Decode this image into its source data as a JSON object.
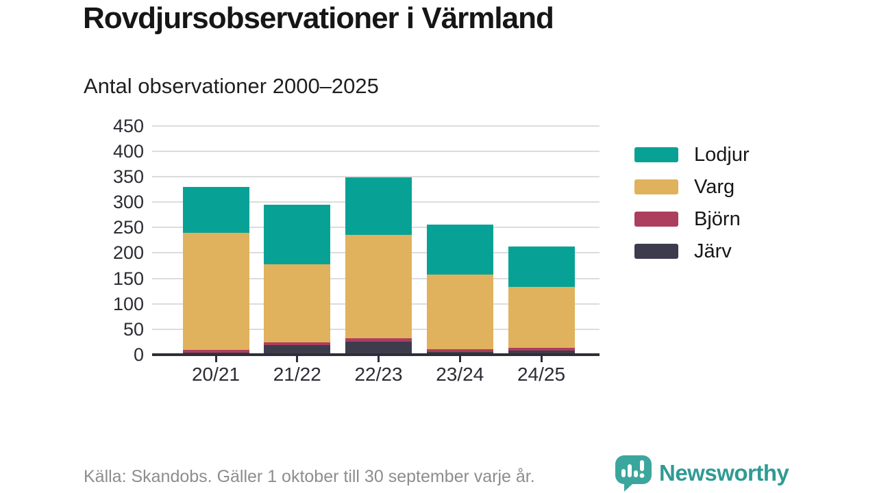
{
  "header": {
    "title": "Rovdjursobservationer i Värmland",
    "subtitle": "Antal observationer 2000–2025"
  },
  "chart_data": {
    "type": "bar",
    "stacked": true,
    "title": "Rovdjursobservationer i Värmland",
    "subtitle": "Antal observationer 2000–2025",
    "categories": [
      "20/21",
      "21/22",
      "22/23",
      "23/24",
      "24/25"
    ],
    "series": [
      {
        "name": "Järv",
        "color": "#3d3c4d",
        "values": [
          4,
          19,
          26,
          5,
          8
        ]
      },
      {
        "name": "Björn",
        "color": "#ac3e5e",
        "values": [
          6,
          5,
          6,
          6,
          6
        ]
      },
      {
        "name": "Varg",
        "color": "#e0b25d",
        "values": [
          229,
          154,
          204,
          146,
          119
        ]
      },
      {
        "name": "Lodjur",
        "color": "#07a295",
        "values": [
          91,
          117,
          112,
          99,
          80
        ]
      }
    ],
    "totals": [
      330,
      295,
      348,
      256,
      213
    ],
    "xlabel": "",
    "ylabel": "",
    "ylim": [
      0,
      450
    ],
    "yticks": [
      0,
      50,
      100,
      150,
      200,
      250,
      300,
      350,
      400,
      450
    ],
    "grid": true,
    "gridline_color": "#dcdcdc",
    "axis_color": "#2e2d38",
    "legend_position": "right"
  },
  "legend": {
    "items": [
      {
        "label": "Lodjur",
        "color": "#07a295"
      },
      {
        "label": "Varg",
        "color": "#e0b25d"
      },
      {
        "label": "Björn",
        "color": "#ac3e5e"
      },
      {
        "label": "Järv",
        "color": "#3d3c4d"
      }
    ]
  },
  "footer": {
    "source": "Källa: Skandobs. Gäller 1 oktober till 30 september varje år.",
    "brand": "Newsworthy",
    "brand_color": "#2f9b93"
  },
  "icons": {
    "logo": "newsworthy-speech-bubble-chart-icon"
  }
}
